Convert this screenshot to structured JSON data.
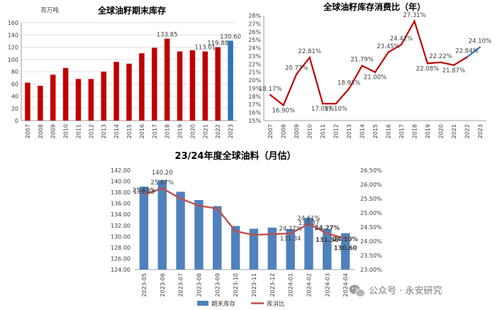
{
  "chart_data": [
    {
      "type": "bar",
      "title": "全球油籽期末库存",
      "ylabel": "百万吨",
      "categories": [
        "2007",
        "2008",
        "2009",
        "2010",
        "2011",
        "2012",
        "2013",
        "2014",
        "2015",
        "2016",
        "2017",
        "2018",
        "2019",
        "2020",
        "2021",
        "2022",
        "2023"
      ],
      "values": [
        62,
        57,
        75,
        86,
        68,
        68,
        80,
        96,
        93,
        110,
        119,
        133.85,
        113,
        115,
        113.01,
        119.88,
        130.6
      ],
      "labels": [
        "",
        "",
        "",
        "",
        "",
        "",
        "",
        "",
        "",
        "",
        "",
        "133.85",
        "",
        "",
        "113.01",
        "119.88",
        "130.60"
      ],
      "colors": {
        "bar": "#c00000",
        "highlight": "#2e75b6"
      },
      "ylim": [
        0,
        160
      ],
      "yticks": [
        "0",
        "20",
        "40",
        "60",
        "80",
        "100",
        "120",
        "140",
        "160"
      ],
      "grid": true
    },
    {
      "type": "line",
      "title": "全球油籽库存消费比（年）",
      "categories": [
        "2007",
        "2008",
        "2009",
        "2010",
        "2011",
        "2012",
        "2013",
        "2014",
        "2015",
        "2016",
        "2017",
        "2018",
        "2019",
        "2020",
        "2021",
        "2022",
        "2023"
      ],
      "values": [
        18.17,
        16.9,
        20.77,
        22.81,
        17.09,
        17.1,
        18.93,
        21.79,
        21.0,
        23.45,
        24.42,
        27.31,
        22.08,
        22.22,
        21.87,
        22.84,
        24.1
      ],
      "labels": [
        "18.17%",
        "16.90%",
        "20.77%",
        "22.81%",
        "17.09%",
        "17.10%",
        "18.93%",
        "21.79%",
        "21.00%",
        "23.45%",
        "24.42%",
        "27.31%",
        "22.08%",
        "22.22%",
        "21.87%",
        "22.84%",
        "24.10%"
      ],
      "colors": {
        "line": "#c00000",
        "highlight": "#2e75b6"
      },
      "ylim": [
        15,
        28
      ],
      "yticks": [
        "15%",
        "16%",
        "17%",
        "18%",
        "19%",
        "20%",
        "21%",
        "22%",
        "23%",
        "24%",
        "25%",
        "26%",
        "27%",
        "28%"
      ],
      "grid": false
    },
    {
      "type": "bar",
      "title": "23/24年度全球油料（月估）",
      "categories": [
        "2023-05",
        "2023-06",
        "2023-07",
        "2023-08",
        "2023-09",
        "2023-10",
        "2023-11",
        "2023-12",
        "2024-01",
        "2024-02",
        "2024-03",
        "2024-04"
      ],
      "series": [
        {
          "name": "期末库存",
          "type": "bar",
          "axis": "left",
          "values": [
            139.03,
            140.2,
            138.1,
            136.6,
            135.5,
            131.9,
            131.4,
            131.6,
            131.34,
            133.37,
            131.36,
            130.6
          ]
        },
        {
          "name": "库消比",
          "type": "line",
          "axis": "right",
          "values": [
            25.63,
            25.87,
            25.5,
            25.25,
            25.15,
            24.35,
            24.22,
            24.25,
            24.27,
            24.61,
            24.27,
            24.1
          ]
        }
      ],
      "bar_labels": [
        "139.03",
        "140.20",
        "",
        "",
        "",
        "",
        "",
        "",
        "131.34",
        "133.37",
        "131.36",
        "130.60"
      ],
      "line_labels": [
        "25.63%",
        "25.87%",
        "",
        "",
        "",
        "",
        "",
        "",
        "24.27%",
        "24.61%",
        "24.27%",
        "24.10%"
      ],
      "colors": {
        "bar": "#4f81bd",
        "line": "#c0504d"
      },
      "ylim_left": [
        124,
        142
      ],
      "yticks_left": [
        "124.00",
        "126.00",
        "128.00",
        "130.00",
        "132.00",
        "134.00",
        "136.00",
        "138.00",
        "140.00",
        "142.00"
      ],
      "ylim_right": [
        23.0,
        26.5
      ],
      "yticks_right": [
        "23.00%",
        "23.50%",
        "24.00%",
        "24.50%",
        "25.00%",
        "25.50%",
        "26.00%",
        "26.50%"
      ],
      "legend": "bottom",
      "grid": false
    }
  ],
  "watermark": "公众号 · 永安研究"
}
